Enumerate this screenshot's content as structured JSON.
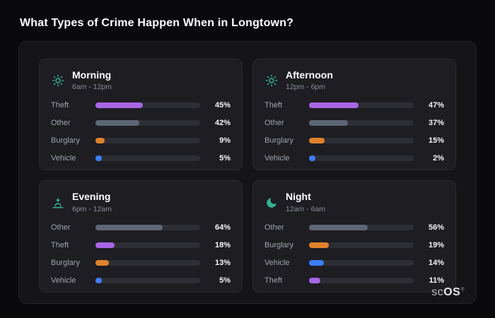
{
  "title": "What Types of Crime Happen When in Longtown?",
  "logo": {
    "prefix": "sc",
    "suffix": "OS",
    "mark": "®"
  },
  "colors": {
    "icon": "#35b492",
    "theft": "#a965e6",
    "other": "#5d6674",
    "burglary": "#e0812d",
    "vehicle": "#3d7ef5",
    "track": "#2d2d34",
    "panel": "#151518",
    "card": "#1d1d22",
    "background": "#0a0a0d"
  },
  "chart_data": {
    "type": "bar",
    "title": "What Types of Crime Happen When in Longtown?",
    "unit": "%",
    "xlim": [
      0,
      100
    ],
    "legend": false,
    "grid": false,
    "groups": [
      {
        "name": "Morning",
        "time": "6am - 12pm",
        "icon": "sun-icon",
        "bars": [
          {
            "label": "Theft",
            "value": 45,
            "display": "45%",
            "color": "#a965e6"
          },
          {
            "label": "Other",
            "value": 42,
            "display": "42%",
            "color": "#5d6674"
          },
          {
            "label": "Burglary",
            "value": 9,
            "display": "9%",
            "color": "#e0812d"
          },
          {
            "label": "Vehicle",
            "value": 5,
            "display": "5%",
            "color": "#3d7ef5"
          }
        ]
      },
      {
        "name": "Afternoon",
        "time": "12pm - 6pm",
        "icon": "sun-icon",
        "bars": [
          {
            "label": "Theft",
            "value": 47,
            "display": "47%",
            "color": "#a965e6"
          },
          {
            "label": "Other",
            "value": 37,
            "display": "37%",
            "color": "#5d6674"
          },
          {
            "label": "Burglary",
            "value": 15,
            "display": "15%",
            "color": "#e0812d"
          },
          {
            "label": "Vehicle",
            "value": 2,
            "display": "2%",
            "color": "#3d7ef5"
          }
        ]
      },
      {
        "name": "Evening",
        "time": "6pm - 12am",
        "icon": "sunset-icon",
        "bars": [
          {
            "label": "Other",
            "value": 64,
            "display": "64%",
            "color": "#5d6674"
          },
          {
            "label": "Theft",
            "value": 18,
            "display": "18%",
            "color": "#a965e6"
          },
          {
            "label": "Burglary",
            "value": 13,
            "display": "13%",
            "color": "#e0812d"
          },
          {
            "label": "Vehicle",
            "value": 5,
            "display": "5%",
            "color": "#3d7ef5"
          }
        ]
      },
      {
        "name": "Night",
        "time": "12am - 6am",
        "icon": "moon-icon",
        "bars": [
          {
            "label": "Other",
            "value": 56,
            "display": "56%",
            "color": "#5d6674"
          },
          {
            "label": "Burglary",
            "value": 19,
            "display": "19%",
            "color": "#e0812d"
          },
          {
            "label": "Vehicle",
            "value": 14,
            "display": "14%",
            "color": "#3d7ef5"
          },
          {
            "label": "Theft",
            "value": 11,
            "display": "11%",
            "color": "#a965e6"
          }
        ]
      }
    ]
  }
}
